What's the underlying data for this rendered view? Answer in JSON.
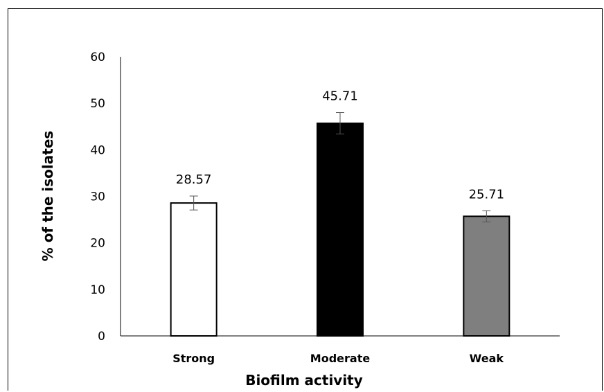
{
  "chart_data": {
    "type": "bar",
    "title": "",
    "xlabel": "Biofilm activity",
    "ylabel": "% of the isolates",
    "categories": [
      "Strong",
      "Moderate",
      "Weak"
    ],
    "values": [
      28.57,
      45.71,
      25.71
    ],
    "value_labels": [
      "28.57",
      "45.71",
      "25.71"
    ],
    "error": [
      1.5,
      2.3,
      1.2
    ],
    "bar_fill_colors": [
      "#ffffff",
      "#000000",
      "#7f7f7f"
    ],
    "bar_stroke_color": "#000000",
    "ylim": [
      0,
      60
    ],
    "yticks": [
      "0",
      "10",
      "20",
      "30",
      "40",
      "50",
      "60"
    ],
    "grid": false,
    "legend": "none"
  }
}
